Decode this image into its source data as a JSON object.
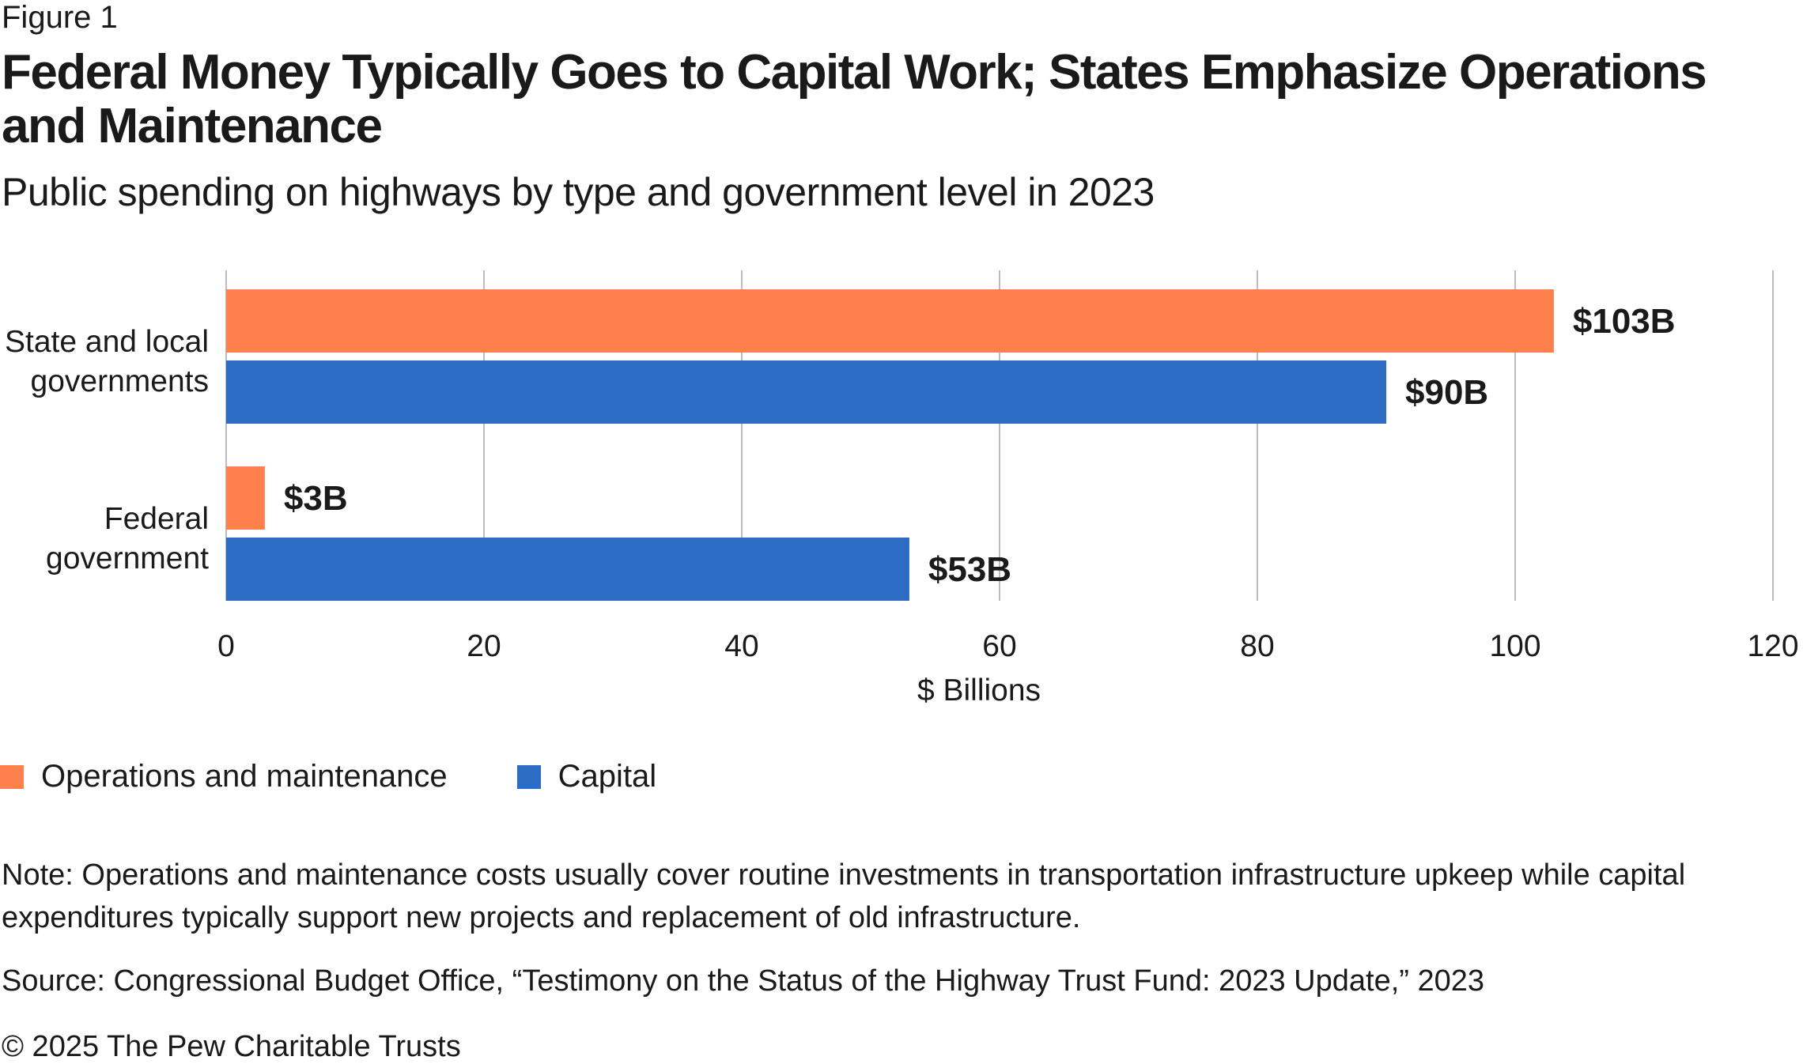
{
  "figure_label": "Figure 1",
  "title": "Federal Money Typically Goes to Capital Work; States Emphasize Operations and Maintenance",
  "subtitle": "Public spending on highways by type and government level in 2023",
  "colors": {
    "operations": "#ff7f4d",
    "capital": "#2c6cc4",
    "grid": "#bdbdbd"
  },
  "chart_data": {
    "type": "bar",
    "orientation": "horizontal",
    "categories": [
      [
        "State and local",
        "governments"
      ],
      [
        "Federal",
        "government"
      ]
    ],
    "series": [
      {
        "name": "Operations and maintenance",
        "values": [
          103,
          3
        ],
        "labels": [
          "$103B",
          "$3B"
        ]
      },
      {
        "name": "Capital",
        "values": [
          90,
          53
        ],
        "labels": [
          "$90B",
          "$53B"
        ]
      }
    ],
    "xlabel": "$ Billions",
    "xlim": [
      0,
      120
    ],
    "xticks": [
      0,
      20,
      40,
      60,
      80,
      100,
      120
    ],
    "grid": true,
    "legend_position": "bottom-left"
  },
  "legend": [
    {
      "label": "Operations and maintenance"
    },
    {
      "label": "Capital"
    }
  ],
  "note": "Note: Operations and maintenance costs usually cover routine investments in transportation infrastructure upkeep while capital expenditures typically support new projects and replacement of old infrastructure.",
  "source": "Source: Congressional Budget Office, “Testimony on the Status of the Highway Trust Fund: 2023 Update,” 2023",
  "copyright": "© 2025 The Pew Charitable Trusts"
}
